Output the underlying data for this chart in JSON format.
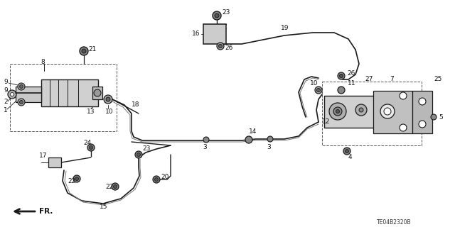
{
  "bg_color": "#ffffff",
  "diagram_code": "TE04B2320B",
  "fig_width": 6.4,
  "fig_height": 3.2,
  "dpi": 100,
  "line_color": "#1a1a1a",
  "part_color": "#666666"
}
